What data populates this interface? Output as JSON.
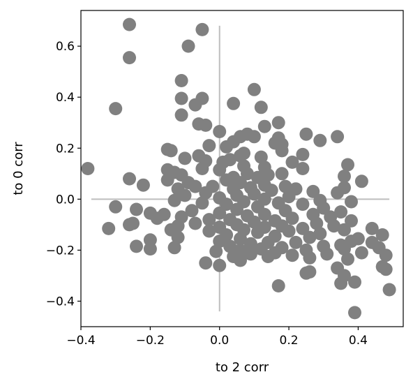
{
  "chart_data": {
    "type": "scatter",
    "xlabel": "to 2 corr",
    "ylabel": "to 0 corr",
    "xlim": [
      -0.4,
      0.53
    ],
    "ylim": [
      -0.5,
      0.74
    ],
    "xticks": [
      -0.4,
      -0.2,
      0.0,
      0.2,
      0.4
    ],
    "yticks": [
      -0.4,
      -0.2,
      0.0,
      0.2,
      0.4,
      0.6
    ],
    "xtick_labels": [
      "−0.4",
      "−0.2",
      "0.0",
      "0.2",
      "0.4"
    ],
    "ytick_labels": [
      "−0.4",
      "−0.2",
      "0.0",
      "0.2",
      "0.4",
      "0.6"
    ],
    "grid": false,
    "point_color": "#808080",
    "crosshair_color": "#bdbdbd",
    "crosshair": {
      "horizontal": {
        "y": 0.0,
        "x_range": [
          -0.37,
          0.49
        ]
      },
      "vertical": {
        "x": 0.0,
        "y_range": [
          -0.44,
          0.68
        ]
      }
    },
    "points": [
      [
        -0.26,
        0.685
      ],
      [
        -0.05,
        0.665
      ],
      [
        -0.26,
        0.555
      ],
      [
        -0.09,
        0.6
      ],
      [
        -0.11,
        0.465
      ],
      [
        0.1,
        0.43
      ],
      [
        -0.11,
        0.395
      ],
      [
        -0.05,
        0.395
      ],
      [
        -0.07,
        0.37
      ],
      [
        0.04,
        0.375
      ],
      [
        0.12,
        0.36
      ],
      [
        -0.3,
        0.355
      ],
      [
        -0.11,
        0.33
      ],
      [
        0.17,
        0.3
      ],
      [
        -0.06,
        0.295
      ],
      [
        -0.04,
        0.29
      ],
      [
        0.13,
        0.285
      ],
      [
        0.0,
        0.265
      ],
      [
        0.08,
        0.255
      ],
      [
        0.25,
        0.255
      ],
      [
        0.06,
        0.245
      ],
      [
        0.34,
        0.245
      ],
      [
        0.1,
        0.245
      ],
      [
        0.17,
        0.24
      ],
      [
        0.29,
        0.23
      ],
      [
        0.04,
        0.225
      ],
      [
        0.16,
        0.22
      ],
      [
        0.18,
        0.215
      ],
      [
        -0.03,
        0.21
      ],
      [
        0.02,
        0.205
      ],
      [
        -0.15,
        0.195
      ],
      [
        -0.14,
        0.19
      ],
      [
        0.18,
        0.19
      ],
      [
        0.07,
        0.18
      ],
      [
        0.24,
        0.175
      ],
      [
        -0.06,
        0.17
      ],
      [
        0.06,
        0.17
      ],
      [
        0.12,
        0.165
      ],
      [
        -0.1,
        0.16
      ],
      [
        0.03,
        0.155
      ],
      [
        -0.04,
        0.15
      ],
      [
        0.01,
        0.145
      ],
      [
        0.21,
        0.145
      ],
      [
        0.37,
        0.135
      ],
      [
        0.07,
        0.13
      ],
      [
        0.13,
        0.125
      ],
      [
        -0.38,
        0.12
      ],
      [
        -0.05,
        0.12
      ],
      [
        0.24,
        0.12
      ],
      [
        0.0,
        0.115
      ],
      [
        -0.15,
        0.115
      ],
      [
        -0.13,
        0.105
      ],
      [
        0.18,
        0.1
      ],
      [
        0.08,
        0.1
      ],
      [
        0.14,
        0.095
      ],
      [
        -0.11,
        0.095
      ],
      [
        0.36,
        0.09
      ],
      [
        0.11,
        0.085
      ],
      [
        0.04,
        0.085
      ],
      [
        -0.26,
        0.08
      ],
      [
        -0.15,
        0.075
      ],
      [
        0.02,
        0.075
      ],
      [
        0.41,
        0.07
      ],
      [
        -0.09,
        0.065
      ],
      [
        0.06,
        0.065
      ],
      [
        -0.22,
        0.055
      ],
      [
        0.13,
        0.055
      ],
      [
        -0.07,
        0.05
      ],
      [
        -0.02,
        0.05
      ],
      [
        0.19,
        0.05
      ],
      [
        0.36,
        0.045
      ],
      [
        0.09,
        0.045
      ],
      [
        -0.12,
        0.04
      ],
      [
        0.04,
        0.04
      ],
      [
        0.22,
        0.04
      ],
      [
        0.15,
        0.035
      ],
      [
        0.27,
        0.03
      ],
      [
        -0.04,
        0.025
      ],
      [
        0.34,
        0.025
      ],
      [
        0.1,
        0.02
      ],
      [
        -0.1,
        0.015
      ],
      [
        0.05,
        0.015
      ],
      [
        0.2,
        0.01
      ],
      [
        0.0,
        0.005
      ],
      [
        0.13,
        0.0
      ],
      [
        0.29,
        -0.005
      ],
      [
        -0.13,
        -0.005
      ],
      [
        0.07,
        -0.01
      ],
      [
        0.38,
        -0.01
      ],
      [
        -0.05,
        -0.015
      ],
      [
        0.17,
        -0.015
      ],
      [
        0.02,
        -0.02
      ],
      [
        0.24,
        -0.02
      ],
      [
        -0.3,
        -0.03
      ],
      [
        0.11,
        -0.03
      ],
      [
        0.3,
        -0.035
      ],
      [
        -0.24,
        -0.04
      ],
      [
        0.05,
        -0.04
      ],
      [
        -0.08,
        -0.045
      ],
      [
        0.19,
        -0.045
      ],
      [
        0.35,
        -0.05
      ],
      [
        -0.2,
        -0.055
      ],
      [
        0.0,
        -0.055
      ],
      [
        0.13,
        -0.06
      ],
      [
        -0.16,
        -0.06
      ],
      [
        0.27,
        -0.06
      ],
      [
        0.08,
        -0.065
      ],
      [
        -0.11,
        -0.07
      ],
      [
        0.32,
        -0.07
      ],
      [
        -0.18,
        -0.075
      ],
      [
        0.21,
        -0.075
      ],
      [
        0.03,
        -0.08
      ],
      [
        -0.03,
        -0.08
      ],
      [
        0.16,
        -0.085
      ],
      [
        0.38,
        -0.085
      ],
      [
        -0.25,
        -0.095
      ],
      [
        0.1,
        -0.09
      ],
      [
        -0.07,
        -0.095
      ],
      [
        0.28,
        -0.095
      ],
      [
        0.05,
        -0.1
      ],
      [
        -0.26,
        -0.1
      ],
      [
        0.18,
        -0.105
      ],
      [
        -0.12,
        -0.105
      ],
      [
        0.33,
        -0.105
      ],
      [
        0.0,
        -0.11
      ],
      [
        0.13,
        -0.11
      ],
      [
        -0.32,
        -0.115
      ],
      [
        0.24,
        -0.115
      ],
      [
        0.44,
        -0.115
      ],
      [
        -0.14,
        -0.12
      ],
      [
        0.07,
        -0.12
      ],
      [
        0.36,
        -0.12
      ],
      [
        -0.03,
        -0.125
      ],
      [
        0.2,
        -0.125
      ],
      [
        0.11,
        -0.13
      ],
      [
        0.29,
        -0.135
      ],
      [
        0.02,
        -0.14
      ],
      [
        0.47,
        -0.14
      ],
      [
        0.16,
        -0.145
      ],
      [
        -0.12,
        -0.15
      ],
      [
        0.26,
        -0.15
      ],
      [
        0.06,
        -0.155
      ],
      [
        0.4,
        -0.155
      ],
      [
        -0.2,
        -0.16
      ],
      [
        0.38,
        -0.165
      ],
      [
        0.0,
        -0.165
      ],
      [
        0.14,
        -0.17
      ],
      [
        0.22,
        -0.17
      ],
      [
        0.44,
        -0.17
      ],
      [
        0.09,
        -0.175
      ],
      [
        0.35,
        -0.18
      ],
      [
        -0.24,
        -0.185
      ],
      [
        0.03,
        -0.185
      ],
      [
        0.3,
        -0.185
      ],
      [
        -0.13,
        -0.19
      ],
      [
        0.18,
        -0.19
      ],
      [
        0.46,
        -0.19
      ],
      [
        -0.2,
        -0.195
      ],
      [
        0.12,
        -0.195
      ],
      [
        0.36,
        -0.195
      ],
      [
        0.06,
        -0.2
      ],
      [
        0.25,
        -0.2
      ],
      [
        -0.01,
        -0.205
      ],
      [
        0.16,
        -0.21
      ],
      [
        0.41,
        -0.21
      ],
      [
        0.09,
        -0.215
      ],
      [
        0.31,
        -0.215
      ],
      [
        0.21,
        -0.22
      ],
      [
        0.48,
        -0.22
      ],
      [
        0.04,
        -0.225
      ],
      [
        0.14,
        -0.225
      ],
      [
        0.26,
        -0.23
      ],
      [
        0.37,
        -0.235
      ],
      [
        0.06,
        -0.24
      ],
      [
        -0.04,
        -0.25
      ],
      [
        0.0,
        -0.26
      ],
      [
        0.47,
        -0.265
      ],
      [
        0.34,
        -0.27
      ],
      [
        0.48,
        -0.275
      ],
      [
        0.26,
        -0.285
      ],
      [
        0.25,
        -0.29
      ],
      [
        0.36,
        -0.3
      ],
      [
        0.39,
        -0.325
      ],
      [
        0.35,
        -0.33
      ],
      [
        0.17,
        -0.34
      ],
      [
        0.49,
        -0.355
      ],
      [
        0.39,
        -0.445
      ]
    ]
  }
}
